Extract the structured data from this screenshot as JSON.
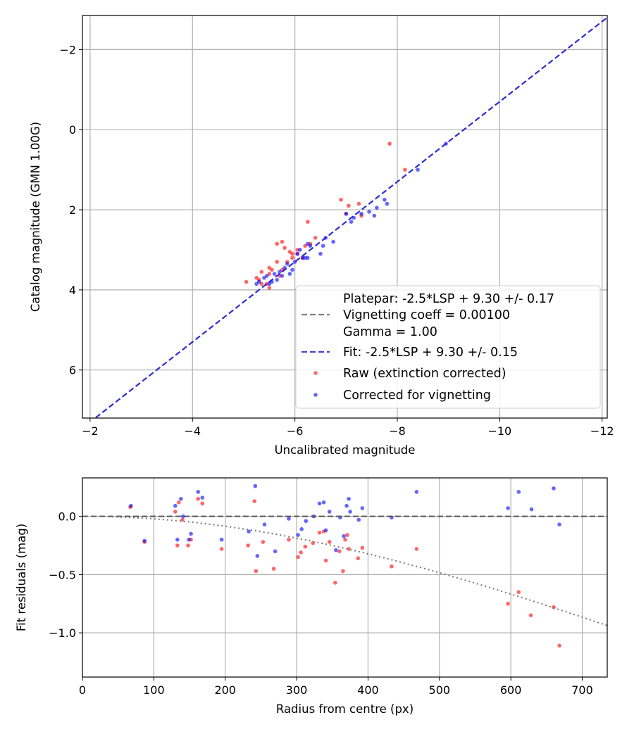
{
  "colors": {
    "raw": "#ff0000",
    "corrected": "#0000ff",
    "fit": "#2222cc",
    "platepar": "#808080",
    "grid": "#b0b0b0"
  },
  "chart_data": [
    {
      "type": "scatter",
      "xlabel": "Uncalibrated magnitude",
      "ylabel": "Catalog magnitude (GMN 1.00G)",
      "xlim": [
        -1.85,
        -12.1
      ],
      "ylim": [
        7.2,
        -2.85
      ],
      "xticks": [
        -2,
        -4,
        -6,
        -8,
        -10,
        -12
      ],
      "xtick_labels": [
        "−2",
        "−4",
        "−6",
        "−8",
        "−10",
        "−12"
      ],
      "yticks": [
        -2,
        0,
        2,
        4,
        6
      ],
      "ytick_labels": [
        "−2",
        "0",
        "2",
        "4",
        "6"
      ],
      "grid": true,
      "legend_position": "lower-right",
      "legend": [
        {
          "label": "Platepar: -2.5*LSP + 9.30 +/- 0.17",
          "style": "dashed-gray"
        },
        {
          "label": "Vignetting coeff = 0.00100",
          "style": "none"
        },
        {
          "label": "Gamma = 1.00",
          "style": "none"
        },
        {
          "label": "Fit: -2.5*LSP + 9.30 +/- 0.15",
          "style": "dashed-blue"
        },
        {
          "label": "Raw (extinction corrected)",
          "style": "red-dot"
        },
        {
          "label": "Corrected for vignetting",
          "style": "blue-dot"
        }
      ],
      "lines": [
        {
          "name": "Fit: -2.5*LSP + 9.30 +/- 0.15",
          "style": "dashed",
          "x": [
            -1.85,
            -12.1
          ],
          "y": [
            7.45,
            -2.8
          ]
        },
        {
          "name": "Platepar: -2.5*LSP + 9.30 +/- 0.17",
          "style": "dashed",
          "x": [
            -1.85,
            -12.1
          ],
          "y": [
            7.45,
            -2.8
          ]
        }
      ],
      "series": [
        {
          "name": "Raw (extinction corrected)",
          "points": [
            [
              -7.85,
              0.35
            ],
            [
              -8.15,
              1.0
            ],
            [
              -6.9,
              1.75
            ],
            [
              -7.0,
              2.1
            ],
            [
              -7.05,
              1.9
            ],
            [
              -7.25,
              1.85
            ],
            [
              -7.3,
              2.15
            ],
            [
              -6.25,
              2.3
            ],
            [
              -6.4,
              2.7
            ],
            [
              -6.3,
              2.85
            ],
            [
              -6.2,
              2.9
            ],
            [
              -5.75,
              2.8
            ],
            [
              -5.65,
              2.85
            ],
            [
              -5.8,
              2.95
            ],
            [
              -5.9,
              3.05
            ],
            [
              -5.95,
              3.1
            ],
            [
              -5.95,
              3.2
            ],
            [
              -5.85,
              3.3
            ],
            [
              -5.65,
              3.3
            ],
            [
              -5.5,
              3.45
            ],
            [
              -5.55,
              3.5
            ],
            [
              -5.5,
              3.6
            ],
            [
              -5.35,
              3.55
            ],
            [
              -5.3,
              3.75
            ],
            [
              -5.25,
              3.7
            ],
            [
              -5.35,
              3.85
            ],
            [
              -5.45,
              3.85
            ],
            [
              -5.5,
              3.95
            ],
            [
              -5.05,
              3.8
            ],
            [
              -5.7,
              3.65
            ],
            [
              -5.75,
              3.5
            ],
            [
              -6.05,
              3.1
            ],
            [
              -6.15,
              3.2
            ],
            [
              -6.05,
              3.0
            ]
          ]
        },
        {
          "name": "Corrected for vignetting",
          "points": [
            [
              -8.95,
              0.35
            ],
            [
              -8.4,
              1.0
            ],
            [
              -7.75,
              1.75
            ],
            [
              -7.8,
              1.85
            ],
            [
              -7.6,
              1.95
            ],
            [
              -7.45,
              2.05
            ],
            [
              -7.55,
              2.15
            ],
            [
              -7.3,
              2.1
            ],
            [
              -7.15,
              2.2
            ],
            [
              -7.1,
              2.3
            ],
            [
              -7.0,
              2.1
            ],
            [
              -6.55,
              2.9
            ],
            [
              -6.5,
              3.1
            ],
            [
              -6.75,
              2.8
            ],
            [
              -6.6,
              2.7
            ],
            [
              -6.25,
              2.85
            ],
            [
              -6.1,
              3.0
            ],
            [
              -6.05,
              3.1
            ],
            [
              -6.15,
              3.2
            ],
            [
              -6.2,
              3.2
            ],
            [
              -6.0,
              3.3
            ],
            [
              -5.85,
              3.35
            ],
            [
              -5.95,
              3.5
            ],
            [
              -5.8,
              3.45
            ],
            [
              -5.7,
              3.55
            ],
            [
              -5.75,
              3.65
            ],
            [
              -5.65,
              3.75
            ],
            [
              -5.6,
              3.6
            ],
            [
              -5.55,
              3.8
            ],
            [
              -5.4,
              3.7
            ],
            [
              -5.3,
              3.8
            ],
            [
              -5.25,
              3.85
            ],
            [
              -5.5,
              3.85
            ],
            [
              -5.45,
              3.65
            ],
            [
              -5.9,
              3.6
            ],
            [
              -6.25,
              3.2
            ],
            [
              -6.3,
              2.9
            ]
          ]
        }
      ]
    },
    {
      "type": "scatter",
      "xlabel": "Radius from centre (px)",
      "ylabel": "Fit residuals (mag)",
      "xlim": [
        0,
        735
      ],
      "ylim": [
        -1.38,
        0.33
      ],
      "xticks": [
        0,
        100,
        200,
        300,
        400,
        500,
        600,
        700
      ],
      "xtick_labels": [
        "0",
        "100",
        "200",
        "300",
        "400",
        "500",
        "600",
        "700"
      ],
      "yticks": [
        -1.0,
        -0.5,
        0.0
      ],
      "ytick_labels": [
        "−1.0",
        "−0.5",
        "0.0"
      ],
      "grid": true,
      "lines": [
        {
          "name": "zero",
          "style": "dashed",
          "x": [
            0,
            735
          ],
          "y": [
            0,
            0
          ]
        },
        {
          "name": "vignetting",
          "style": "dotted",
          "coeff": 0.001,
          "x_start": 0,
          "x_end": 735
        }
      ],
      "series": [
        {
          "name": "Raw (extinction corrected)",
          "points": [
            [
              67,
              0.08
            ],
            [
              87,
              -0.22
            ],
            [
              130,
              0.04
            ],
            [
              133,
              -0.25
            ],
            [
              135,
              0.12
            ],
            [
              140,
              -0.03
            ],
            [
              148,
              -0.25
            ],
            [
              152,
              -0.2
            ],
            [
              162,
              0.15
            ],
            [
              168,
              0.11
            ],
            [
              195,
              -0.28
            ],
            [
              232,
              -0.25
            ],
            [
              241,
              0.13
            ],
            [
              243,
              -0.47
            ],
            [
              253,
              -0.22
            ],
            [
              268,
              -0.45
            ],
            [
              289,
              -0.2
            ],
            [
              302,
              -0.35
            ],
            [
              306,
              -0.31
            ],
            [
              312,
              -0.26
            ],
            [
              323,
              -0.23
            ],
            [
              332,
              -0.14
            ],
            [
              338,
              -0.13
            ],
            [
              341,
              -0.38
            ],
            [
              346,
              -0.22
            ],
            [
              354,
              -0.57
            ],
            [
              360,
              -0.3
            ],
            [
              365,
              -0.47
            ],
            [
              368,
              -0.2
            ],
            [
              371,
              -0.16
            ],
            [
              373,
              -0.28
            ],
            [
              386,
              -0.36
            ],
            [
              392,
              -0.27
            ],
            [
              433,
              -0.43
            ],
            [
              468,
              -0.28
            ],
            [
              596,
              -0.75
            ],
            [
              611,
              -0.65
            ],
            [
              628,
              -0.85
            ],
            [
              660,
              -0.78
            ],
            [
              668,
              -1.11
            ]
          ]
        },
        {
          "name": "Corrected for vignetting",
          "points": [
            [
              68,
              0.09
            ],
            [
              87,
              -0.21
            ],
            [
              130,
              0.09
            ],
            [
              133,
              -0.2
            ],
            [
              138,
              0.15
            ],
            [
              141,
              0.0
            ],
            [
              149,
              -0.2
            ],
            [
              152,
              -0.15
            ],
            [
              162,
              0.21
            ],
            [
              168,
              0.16
            ],
            [
              195,
              -0.2
            ],
            [
              233,
              -0.13
            ],
            [
              242,
              0.26
            ],
            [
              245,
              -0.34
            ],
            [
              255,
              -0.07
            ],
            [
              270,
              -0.3
            ],
            [
              289,
              -0.02
            ],
            [
              302,
              -0.16
            ],
            [
              307,
              -0.11
            ],
            [
              313,
              -0.04
            ],
            [
              324,
              0.0
            ],
            [
              332,
              0.11
            ],
            [
              338,
              0.12
            ],
            [
              341,
              -0.12
            ],
            [
              346,
              0.04
            ],
            [
              355,
              -0.29
            ],
            [
              361,
              -0.01
            ],
            [
              366,
              -0.17
            ],
            [
              370,
              0.09
            ],
            [
              373,
              0.15
            ],
            [
              375,
              0.04
            ],
            [
              387,
              -0.03
            ],
            [
              392,
              0.07
            ],
            [
              433,
              -0.01
            ],
            [
              468,
              0.21
            ],
            [
              596,
              0.07
            ],
            [
              611,
              0.21
            ],
            [
              629,
              0.06
            ],
            [
              660,
              0.24
            ],
            [
              668,
              -0.07
            ]
          ]
        }
      ]
    }
  ]
}
